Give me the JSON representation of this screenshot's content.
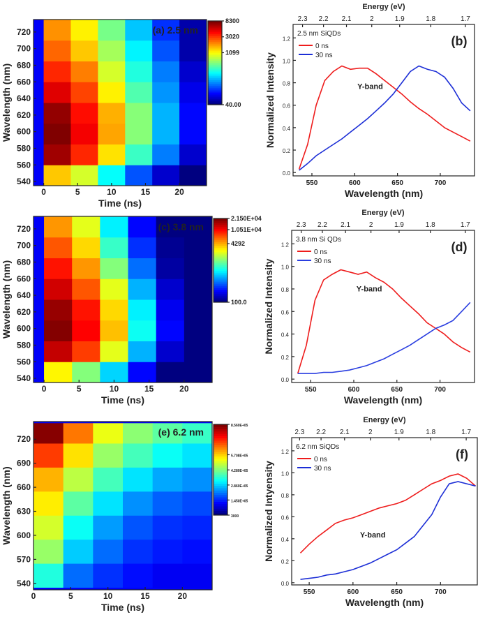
{
  "chart_data": [
    {
      "type": "heatmap",
      "annotation": "(a) 2.5 nm",
      "xlabel": "Time (ns)",
      "ylabel": "Wavelength (nm)",
      "xlim": [
        -1.5,
        24
      ],
      "xticks": [
        0,
        5,
        10,
        15,
        20
      ],
      "ylim": [
        535,
        735
      ],
      "yticks": [
        540,
        560,
        580,
        600,
        620,
        640,
        660,
        680,
        700,
        720
      ],
      "x_edges": [
        0,
        4,
        8,
        12,
        16,
        20,
        24
      ],
      "y_edges": [
        535,
        560,
        585,
        610,
        635,
        660,
        685,
        710,
        735
      ],
      "z": [
        [
          1500,
          900,
          300,
          120,
          60,
          40
        ],
        [
          7000,
          3500,
          1300,
          400,
          150,
          60
        ],
        [
          8300,
          4500,
          1800,
          600,
          200,
          80
        ],
        [
          7500,
          4000,
          1700,
          600,
          200,
          80
        ],
        [
          5000,
          3000,
          1200,
          450,
          170,
          70
        ],
        [
          3500,
          2200,
          900,
          350,
          150,
          60
        ],
        [
          2500,
          1500,
          700,
          280,
          120,
          50
        ],
        [
          2000,
          1200,
          550,
          220,
          100,
          50
        ]
      ],
      "color_scale": "log",
      "clim": [
        40,
        8300
      ],
      "colorbar_ticks": [
        8300,
        3020,
        1099,
        {
          "value": 40,
          "label": "40.00"
        }
      ]
    },
    {
      "type": "line",
      "annotation": "(b)",
      "subtitle": "2.5 nm SiQDs",
      "band_label": "Y-band",
      "xlabel": "Wavelength (nm)",
      "ylabel": "Normalized Intensity",
      "x2label": "Energy (eV)",
      "xlim": [
        528,
        740
      ],
      "xticks": [
        550,
        600,
        650,
        700
      ],
      "ylim": [
        -0.03,
        1.32
      ],
      "yticks": [
        {
          "value": 0,
          "label": "0.0"
        },
        0.2,
        0.4,
        0.6,
        0.8,
        {
          "value": 1,
          "label": "1.0"
        },
        1.2
      ],
      "x2ticks": [
        2.3,
        2.2,
        2.1,
        2,
        1.9,
        1.8,
        1.7
      ],
      "x": [
        535,
        545,
        555,
        565,
        575,
        585,
        595,
        605,
        615,
        625,
        635,
        645,
        655,
        665,
        675,
        685,
        695,
        705,
        715,
        725,
        735
      ],
      "series": [
        {
          "name": "0 ns",
          "color": "#ee1c1c",
          "values": [
            0.03,
            0.25,
            0.6,
            0.82,
            0.9,
            0.95,
            0.92,
            0.93,
            0.93,
            0.88,
            0.82,
            0.76,
            0.7,
            0.63,
            0.57,
            0.52,
            0.46,
            0.4,
            0.36,
            0.32,
            0.28
          ]
        },
        {
          "name": "30 ns",
          "color": "#1c2ed6",
          "values": [
            0.02,
            0.08,
            0.15,
            0.2,
            0.25,
            0.3,
            0.36,
            0.42,
            0.48,
            0.55,
            0.62,
            0.7,
            0.8,
            0.9,
            0.95,
            0.92,
            0.9,
            0.85,
            0.75,
            0.62,
            0.55
          ]
        }
      ]
    },
    {
      "type": "heatmap",
      "annotation": "(c) 3.8 nm",
      "xlabel": "Time (ns)",
      "ylabel": "Wavelength (nm)",
      "xlim": [
        -1.5,
        24
      ],
      "xticks": [
        0,
        5,
        10,
        15,
        20
      ],
      "ylim": [
        535,
        735
      ],
      "yticks": [
        540,
        560,
        580,
        600,
        620,
        640,
        660,
        680,
        700,
        720
      ],
      "x_edges": [
        0,
        4,
        8,
        12,
        16,
        20,
        24
      ],
      "y_edges": [
        535,
        560,
        585,
        610,
        635,
        660,
        685,
        710,
        735
      ],
      "z": [
        [
          3000,
          1500,
          600,
          200,
          100,
          100
        ],
        [
          15000,
          8000,
          2500,
          500,
          150,
          100
        ],
        [
          21000,
          11000,
          4000,
          800,
          200,
          100
        ],
        [
          19000,
          10000,
          3500,
          700,
          180,
          100
        ],
        [
          14000,
          7000,
          2500,
          500,
          150,
          100
        ],
        [
          10000,
          5000,
          1500,
          350,
          120,
          100
        ],
        [
          7000,
          3500,
          1000,
          250,
          110,
          100
        ],
        [
          5000,
          2500,
          700,
          200,
          100,
          100
        ]
      ],
      "color_scale": "log",
      "clim": [
        100,
        21500
      ],
      "colorbar_ticks": [
        {
          "value": 21500,
          "label": "2.150E+04"
        },
        {
          "value": 10510,
          "label": "1.051E+04"
        },
        4292,
        {
          "value": 100,
          "label": "100.0"
        }
      ]
    },
    {
      "type": "line",
      "annotation": "(d)",
      "subtitle": "3.8 nm Si QDs",
      "band_label": "Y-band",
      "xlabel": "Wavelength (nm)",
      "ylabel": "Normalized Intensity",
      "x2label": "Energy (eV)",
      "xlim": [
        528,
        740
      ],
      "xticks": [
        550,
        600,
        650,
        700
      ],
      "ylim": [
        -0.03,
        1.32
      ],
      "yticks": [
        {
          "value": 0,
          "label": "0.0"
        },
        0.2,
        0.4,
        0.6,
        0.8,
        {
          "value": 1,
          "label": "1.0"
        },
        1.2
      ],
      "x2ticks": [
        2.3,
        2.2,
        2.1,
        2,
        1.9,
        1.8,
        1.7
      ],
      "x": [
        535,
        545,
        555,
        565,
        575,
        585,
        595,
        605,
        615,
        625,
        635,
        645,
        655,
        665,
        675,
        685,
        695,
        705,
        715,
        725,
        735
      ],
      "series": [
        {
          "name": "0 ns",
          "color": "#ee1c1c",
          "values": [
            0.05,
            0.3,
            0.7,
            0.88,
            0.93,
            0.97,
            0.95,
            0.93,
            0.95,
            0.9,
            0.86,
            0.8,
            0.72,
            0.65,
            0.58,
            0.5,
            0.45,
            0.4,
            0.33,
            0.28,
            0.24
          ]
        },
        {
          "name": "30 ns",
          "color": "#2a3ee0",
          "values": [
            0.05,
            0.05,
            0.05,
            0.06,
            0.06,
            0.07,
            0.08,
            0.1,
            0.12,
            0.15,
            0.18,
            0.22,
            0.26,
            0.3,
            0.35,
            0.4,
            0.45,
            0.48,
            0.52,
            0.6,
            0.68
          ]
        }
      ]
    },
    {
      "type": "heatmap",
      "annotation": "(e) 6.2 nm",
      "xlabel": "Time (ns)",
      "ylabel": "Wavelength (nm)",
      "xlim": [
        0,
        24
      ],
      "xticks": [
        0,
        5,
        10,
        15,
        20
      ],
      "ylim": [
        532,
        742
      ],
      "yticks": [
        540,
        570,
        600,
        630,
        660,
        690,
        720
      ],
      "x_edges": [
        0,
        4,
        8,
        12,
        16,
        20,
        24
      ],
      "y_edges": [
        535,
        565,
        595,
        625,
        655,
        685,
        715,
        740
      ],
      "z": [
        [
          350000,
          200000,
          150000,
          120000,
          100000,
          100000
        ],
        [
          450000,
          280000,
          200000,
          150000,
          130000,
          120000
        ],
        [
          500000,
          330000,
          240000,
          180000,
          150000,
          140000
        ],
        [
          550000,
          400000,
          300000,
          230000,
          190000,
          170000
        ],
        [
          600000,
          480000,
          380000,
          300000,
          250000,
          230000
        ],
        [
          700000,
          560000,
          450000,
          380000,
          330000,
          300000
        ],
        [
          850000,
          650000,
          520000,
          440000,
          400000,
          370000
        ]
      ],
      "color_scale": "linear",
      "clim": [
        3000,
        856000
      ],
      "colorbar_ticks": [
        {
          "value": 856000,
          "label": "8.560E+05"
        },
        {
          "value": 570800,
          "label": "5.708E+05"
        },
        {
          "value": 428000,
          "label": "4.280E+05"
        },
        {
          "value": 286000,
          "label": "2.860E+05"
        },
        {
          "value": 145000,
          "label": "1.450E+05"
        },
        3000
      ]
    },
    {
      "type": "line",
      "annotation": "(f)",
      "subtitle": "6.2 nm SiQDs",
      "band_label": "Y-band",
      "xlabel": "Wavelength (nm)",
      "ylabel": "Normalized Intyensity",
      "x2label": "Energy (eV)",
      "xlim": [
        530,
        742
      ],
      "xticks": [
        550,
        600,
        650,
        700
      ],
      "ylim": [
        -0.02,
        1.32
      ],
      "yticks": [
        {
          "value": 0,
          "label": "0.0"
        },
        0.2,
        0.4,
        0.6,
        0.8,
        {
          "value": 1,
          "label": "1.0"
        },
        1.2
      ],
      "x2ticks": [
        2.3,
        2.2,
        2.1,
        2,
        1.9,
        1.8,
        1.7
      ],
      "x": [
        540,
        550,
        560,
        570,
        580,
        590,
        600,
        610,
        620,
        630,
        640,
        650,
        660,
        670,
        680,
        690,
        700,
        710,
        720,
        730,
        740
      ],
      "series": [
        {
          "name": "0 ns",
          "color": "#ee1c1c",
          "values": [
            0.27,
            0.35,
            0.42,
            0.48,
            0.54,
            0.57,
            0.59,
            0.62,
            0.65,
            0.68,
            0.7,
            0.72,
            0.75,
            0.8,
            0.85,
            0.9,
            0.93,
            0.97,
            0.99,
            0.95,
            0.88
          ]
        },
        {
          "name": "30 ns",
          "color": "#1c2ed6",
          "values": [
            0.03,
            0.04,
            0.05,
            0.07,
            0.08,
            0.1,
            0.12,
            0.15,
            0.18,
            0.22,
            0.26,
            0.3,
            0.36,
            0.42,
            0.52,
            0.62,
            0.78,
            0.9,
            0.92,
            0.9,
            0.88
          ]
        }
      ]
    }
  ]
}
